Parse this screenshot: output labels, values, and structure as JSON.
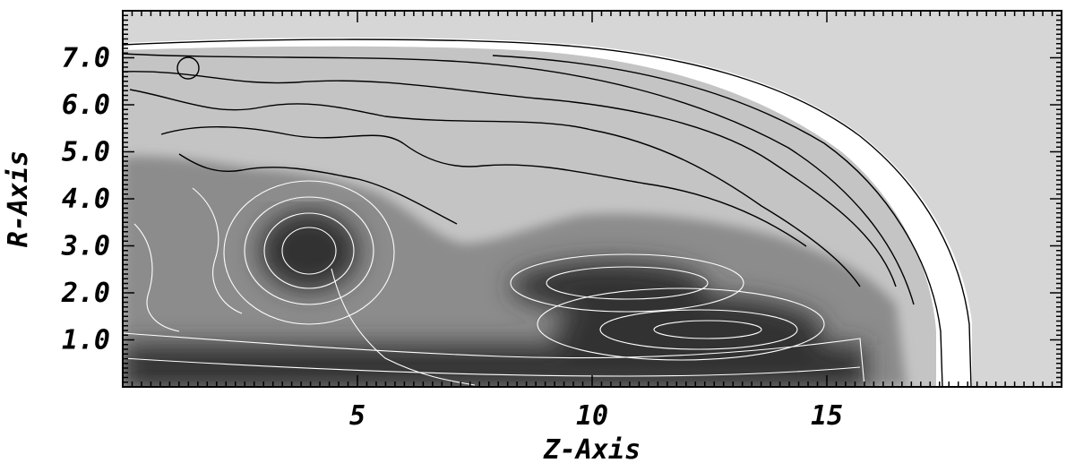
{
  "chart_data": {
    "type": "heatmap",
    "title": "",
    "xlabel": "Z-Axis",
    "ylabel": "R-Axis",
    "xlim": [
      0,
      20
    ],
    "ylim": [
      0,
      8
    ],
    "x_ticks": [
      {
        "value": 5,
        "label": "5"
      },
      {
        "value": 10,
        "label": "10"
      },
      {
        "value": 15,
        "label": "15"
      }
    ],
    "y_ticks": [
      {
        "value": 1,
        "label": "1.0"
      },
      {
        "value": 2,
        "label": "2.0"
      },
      {
        "value": 3,
        "label": "3.0"
      },
      {
        "value": 4,
        "label": "4.0"
      },
      {
        "value": 5,
        "label": "5.0"
      },
      {
        "value": 6,
        "label": "6.0"
      },
      {
        "value": 7,
        "label": "7.0"
      }
    ],
    "colormap": "grayscale",
    "colors": {
      "ambient": "#d6d6d6",
      "shell": "#ffffff",
      "cocoon": "#c4c4c4",
      "mixing_layer": "#8c8c8c",
      "jet_core": "#303030",
      "black_contour": "#000000",
      "white_contour": "#ffffff"
    }
  }
}
